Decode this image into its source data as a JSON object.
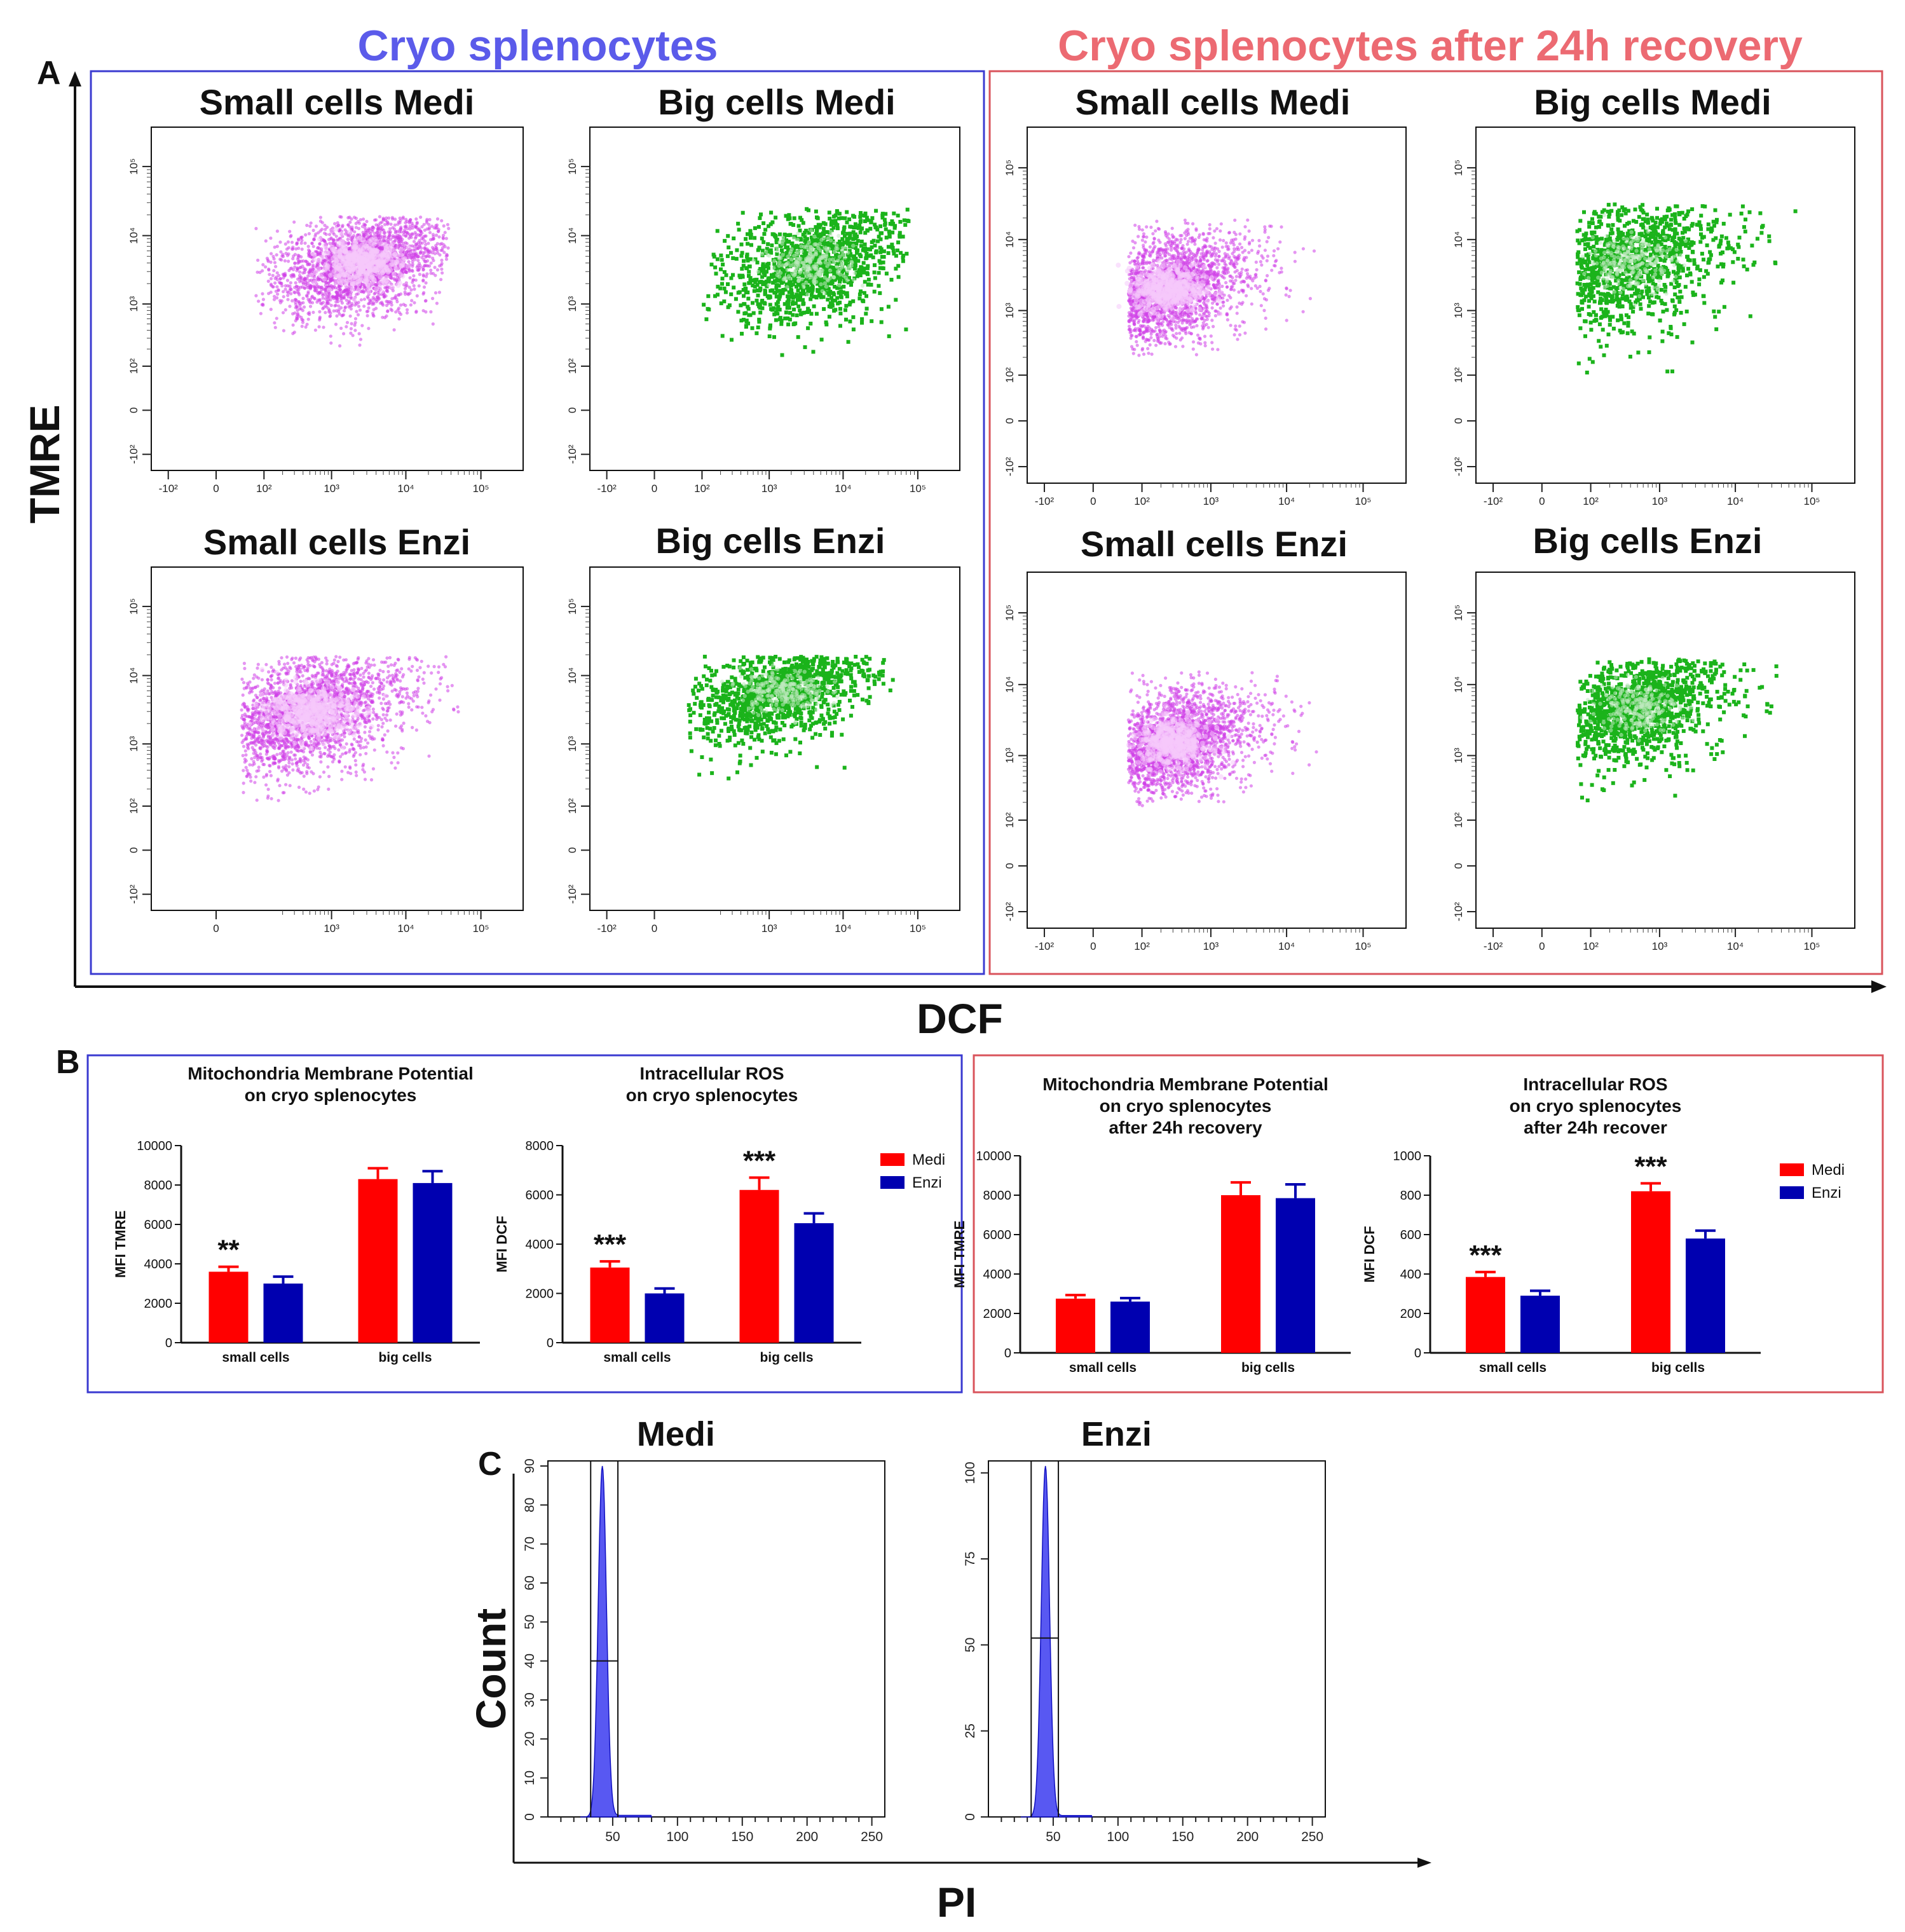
{
  "figure": {
    "panel_letters": [
      "A",
      "B",
      "C"
    ],
    "section_titles": {
      "left": "Cryo splenocytes",
      "right": "Cryo splenocytes after 24h recovery"
    },
    "colors": {
      "left_box": "#3a3ad0",
      "right_box": "#d9535b",
      "left_title": "#5b5bea",
      "right_title": "#ec6a72",
      "magenta": "#d040e8",
      "green": "#1bb31b",
      "medi": "#ff0000",
      "enzi": "#0000b0",
      "histogram": "#3b3bf0"
    },
    "panel_a": {
      "y_label": "TMRE",
      "x_label": "DCF"
    },
    "panel_c": {
      "y_label": "Count",
      "x_label": "PI"
    }
  },
  "chart_data": [
    {
      "type": "scatter",
      "id": "a-cryo-small-medi",
      "title": "Small cells Medi",
      "style": "magenta-density",
      "xlabel": "DCF",
      "ylabel": "TMRE",
      "axis_scale": "biexponential",
      "xticks": [
        "-10²",
        "0",
        "10²",
        "10³",
        "10⁴",
        "10⁵"
      ],
      "yticks": [
        "-10²",
        "0",
        "10²",
        "10³",
        "10⁴",
        "10⁵"
      ],
      "population": {
        "x_range": [
          100,
          30000
        ],
        "y_range": [
          300,
          15000
        ],
        "dense_center": [
          2500,
          4000
        ]
      }
    },
    {
      "type": "scatter",
      "id": "a-cryo-big-medi",
      "title": "Big cells Medi",
      "style": "green-dots",
      "xlabel": "DCF",
      "ylabel": "TMRE",
      "axis_scale": "biexponential",
      "xticks": [
        "-10²",
        "0",
        "10²",
        "10³",
        "10⁴",
        "10⁵"
      ],
      "yticks": [
        "-10²",
        "0",
        "10²",
        "10³",
        "10⁴",
        "10⁵"
      ],
      "population": {
        "x_range": [
          150,
          60000
        ],
        "y_range": [
          200,
          20000
        ],
        "dense_center": [
          4000,
          4000
        ]
      }
    },
    {
      "type": "scatter",
      "id": "a-cryo-small-enzi",
      "title": "Small cells Enzi",
      "style": "magenta-density",
      "xlabel": "DCF",
      "ylabel": "TMRE",
      "axis_scale": "biexponential",
      "xticks": [
        "0",
        "10³",
        "10⁴",
        "10⁵"
      ],
      "yticks": [
        "-10²",
        "0",
        "10²",
        "10³",
        "10⁴",
        "10⁵"
      ],
      "population": {
        "x_range": [
          50,
          40000
        ],
        "y_range": [
          150,
          15000
        ],
        "dense_center": [
          500,
          3000
        ]
      }
    },
    {
      "type": "scatter",
      "id": "a-cryo-big-enzi",
      "title": "Big cells Enzi",
      "style": "green-dots",
      "xlabel": "DCF",
      "ylabel": "TMRE",
      "axis_scale": "biexponential",
      "xticks": [
        "-10²",
        "0",
        "10³",
        "10⁴",
        "10⁵"
      ],
      "yticks": [
        "-10²",
        "0",
        "10²",
        "10³",
        "10⁴",
        "10⁵"
      ],
      "population": {
        "x_range": [
          80,
          40000
        ],
        "y_range": [
          400,
          15000
        ],
        "dense_center": [
          1500,
          6000
        ]
      }
    },
    {
      "type": "scatter",
      "id": "a-rec-small-medi",
      "title": "Small cells Medi",
      "style": "magenta-density",
      "xlabel": "DCF",
      "ylabel": "TMRE",
      "axis_scale": "biexponential",
      "xticks": [
        "-10²",
        "0",
        "10²",
        "10³",
        "10⁴",
        "10⁵"
      ],
      "yticks": [
        "-10²",
        "0",
        "10²",
        "10³",
        "10⁴",
        "10⁵"
      ],
      "population": {
        "x_range": [
          80,
          20000
        ],
        "y_range": [
          300,
          15000
        ],
        "dense_center": [
          250,
          2000
        ]
      }
    },
    {
      "type": "scatter",
      "id": "a-rec-big-medi",
      "title": "Big cells Medi",
      "style": "green-dots",
      "xlabel": "DCF",
      "ylabel": "TMRE",
      "axis_scale": "biexponential",
      "xticks": [
        "-10²",
        "0",
        "10²",
        "10³",
        "10⁴",
        "10⁵"
      ],
      "yticks": [
        "-10²",
        "0",
        "10²",
        "10³",
        "10⁴",
        "10⁵"
      ],
      "population": {
        "x_range": [
          80,
          60000
        ],
        "y_range": [
          150,
          25000
        ],
        "dense_center": [
          400,
          5000
        ]
      }
    },
    {
      "type": "scatter",
      "id": "a-rec-small-enzi",
      "title": "Small cells Enzi",
      "style": "magenta-density",
      "xlabel": "DCF",
      "ylabel": "TMRE",
      "axis_scale": "biexponential",
      "xticks": [
        "-10²",
        "0",
        "10²",
        "10³",
        "10⁴",
        "10⁵"
      ],
      "yticks": [
        "-10²",
        "0",
        "10²",
        "10³",
        "10⁴",
        "10⁵"
      ],
      "population": {
        "x_range": [
          80,
          20000
        ],
        "y_range": [
          250,
          12000
        ],
        "dense_center": [
          300,
          1500
        ]
      }
    },
    {
      "type": "scatter",
      "id": "a-rec-big-enzi",
      "title": "Big cells Enzi",
      "style": "green-dots",
      "xlabel": "DCF",
      "ylabel": "TMRE",
      "axis_scale": "biexponential",
      "xticks": [
        "-10²",
        "0",
        "10²",
        "10³",
        "10⁴",
        "10⁵"
      ],
      "yticks": [
        "-10²",
        "0",
        "10²",
        "10³",
        "10⁴",
        "10⁵"
      ],
      "population": {
        "x_range": [
          80,
          30000
        ],
        "y_range": [
          300,
          18000
        ],
        "dense_center": [
          500,
          5000
        ]
      }
    },
    {
      "type": "bar",
      "id": "b-cryo-tmre",
      "title": [
        "Mitochondria Membrane Potential",
        "on cryo splenocytes"
      ],
      "ylabel": "MFI TMRE",
      "categories": [
        "small cells",
        "big cells"
      ],
      "ylim": [
        0,
        10000
      ],
      "yticks": [
        0,
        2000,
        4000,
        6000,
        8000,
        10000
      ],
      "series": [
        {
          "name": "Medi",
          "values": [
            3600,
            8300
          ],
          "errors": [
            250,
            550
          ]
        },
        {
          "name": "Enzi",
          "values": [
            3000,
            8100
          ],
          "errors": [
            350,
            600
          ]
        }
      ],
      "annotations": [
        {
          "category": "small cells",
          "text": "**"
        }
      ]
    },
    {
      "type": "bar",
      "id": "b-cryo-dcf",
      "title": [
        "Intracellular ROS",
        "on cryo splenocytes"
      ],
      "ylabel": "MFI DCF",
      "categories": [
        "small cells",
        "big cells"
      ],
      "ylim": [
        0,
        8000
      ],
      "yticks": [
        0,
        2000,
        4000,
        6000,
        8000
      ],
      "series": [
        {
          "name": "Medi",
          "values": [
            3050,
            6200
          ],
          "errors": [
            250,
            500
          ]
        },
        {
          "name": "Enzi",
          "values": [
            2000,
            4850
          ],
          "errors": [
            200,
            400
          ]
        }
      ],
      "legend": [
        "Medi",
        "Enzi"
      ],
      "annotations": [
        {
          "category": "small cells",
          "text": "***"
        },
        {
          "category": "big cells",
          "text": "***"
        }
      ]
    },
    {
      "type": "bar",
      "id": "b-rec-tmre",
      "title": [
        "Mitochondria Membrane Potential",
        "on cryo splenocytes",
        "after 24h recovery"
      ],
      "ylabel": "MFI TMRE",
      "categories": [
        "small cells",
        "big cells"
      ],
      "ylim": [
        0,
        10000
      ],
      "yticks": [
        0,
        2000,
        4000,
        6000,
        8000,
        10000
      ],
      "series": [
        {
          "name": "Medi",
          "values": [
            2750,
            8000
          ],
          "errors": [
            180,
            650
          ]
        },
        {
          "name": "Enzi",
          "values": [
            2600,
            7850
          ],
          "errors": [
            180,
            700
          ]
        }
      ]
    },
    {
      "type": "bar",
      "id": "b-rec-dcf",
      "title": [
        "Intracellular ROS",
        "on cryo splenocytes",
        "after 24h recover"
      ],
      "ylabel": "MFI DCF",
      "categories": [
        "small cells",
        "big cells"
      ],
      "ylim": [
        0,
        1000
      ],
      "yticks": [
        0,
        200,
        400,
        600,
        800,
        1000
      ],
      "series": [
        {
          "name": "Medi",
          "values": [
            385,
            820
          ],
          "errors": [
            25,
            40
          ]
        },
        {
          "name": "Enzi",
          "values": [
            290,
            580
          ],
          "errors": [
            25,
            40
          ]
        }
      ],
      "legend": [
        "Medi",
        "Enzi"
      ],
      "annotations": [
        {
          "category": "small cells",
          "text": "***"
        },
        {
          "category": "big cells",
          "text": "***"
        }
      ]
    },
    {
      "type": "histogram",
      "id": "c-medi",
      "title": "Medi",
      "xlabel": "PI",
      "ylabel": "Count",
      "xlim": [
        0,
        260
      ],
      "xticks": [
        50,
        100,
        150,
        200,
        250
      ],
      "ylim": [
        0,
        90
      ],
      "yticks": [
        0,
        10,
        20,
        30,
        40,
        50,
        60,
        70,
        80,
        90
      ],
      "peak": {
        "center": 42,
        "width": 3.2,
        "height": 90
      },
      "gate": {
        "x_from": 33,
        "x_to": 54,
        "marker_y": 40
      }
    },
    {
      "type": "histogram",
      "id": "c-enzi",
      "title": "Enzi",
      "xlabel": "PI",
      "ylabel": "Count",
      "xlim": [
        0,
        260
      ],
      "xticks": [
        50,
        100,
        150,
        200,
        250
      ],
      "ylim": [
        0,
        102
      ],
      "yticks": [
        0,
        25,
        50,
        75,
        100
      ],
      "peak": {
        "center": 44,
        "width": 3.2,
        "height": 102
      },
      "gate": {
        "x_from": 33,
        "x_to": 54,
        "marker_y": 52
      }
    }
  ]
}
